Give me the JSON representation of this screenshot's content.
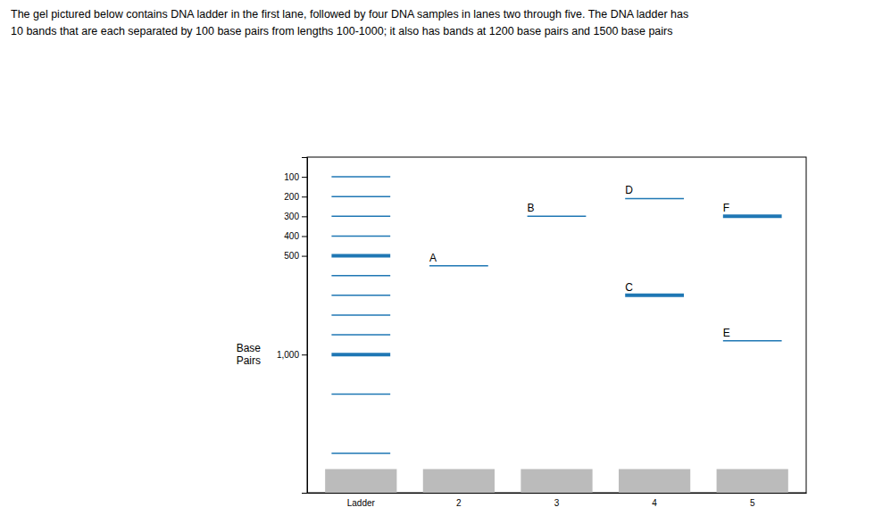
{
  "chart_data": {
    "type": "gel",
    "title": "The gel pictured below contains DNA ladder in the first lane, followed by four DNA samples in lanes two through five. The DNA ladder has",
    "subtitle": "10 bands that are each separated by 100 base pairs from lengths 100-1000; it also has bands at 1200 base pairs and 1500 base pairs",
    "ylabel": "Base\nPairs",
    "categories": [
      "Ladder",
      "2",
      "3",
      "4",
      "5"
    ],
    "ylim": [
      1700,
      0
    ],
    "yticks": [
      {
        "value": 1000,
        "label": "1,000"
      },
      500,
      400,
      300,
      200,
      100
    ],
    "grid": false,
    "wells": [
      1580,
      1700
    ],
    "bands": [
      {
        "category": "Ladder",
        "value": 1500,
        "line_style": "thin"
      },
      {
        "category": "Ladder",
        "value": 1200,
        "line_style": "thin"
      },
      {
        "category": "Ladder",
        "value": 1000,
        "line_style": "thick"
      },
      {
        "category": "Ladder",
        "value": 900,
        "line_style": "thin"
      },
      {
        "category": "Ladder",
        "value": 800,
        "line_style": "thin"
      },
      {
        "category": "Ladder",
        "value": 700,
        "line_style": "thin"
      },
      {
        "category": "Ladder",
        "value": 600,
        "line_style": "thin"
      },
      {
        "category": "Ladder",
        "value": 500,
        "line_style": "thick"
      },
      {
        "category": "Ladder",
        "value": 400,
        "line_style": "thin"
      },
      {
        "category": "Ladder",
        "value": 300,
        "line_style": "thin"
      },
      {
        "category": "Ladder",
        "value": 200,
        "line_style": "thin"
      },
      {
        "category": "Ladder",
        "value": 100,
        "line_style": "thin"
      },
      {
        "category": "2",
        "value": 550,
        "label": "A",
        "line_style": "thin"
      },
      {
        "category": "3",
        "value": 300,
        "label": "B",
        "line_style": "thin"
      },
      {
        "category": "4",
        "value": 700,
        "label": "C",
        "line_style": "thick"
      },
      {
        "category": "4",
        "value": 210,
        "label": "D",
        "line_style": "thin"
      },
      {
        "category": "5",
        "value": 930,
        "label": "E",
        "line_style": "thin"
      },
      {
        "category": "5",
        "value": 300,
        "label": "F",
        "line_style": "thick"
      }
    ]
  }
}
